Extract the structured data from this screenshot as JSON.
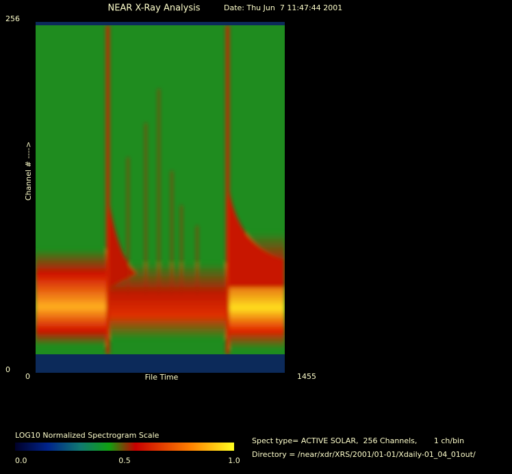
{
  "chart_data": {
    "type": "spectrogram",
    "title": "NEAR X-Ray Analysis",
    "date": "Date: Thu Jun  7 11:47:44 2001",
    "x_label": "File Time",
    "y_label": "Channel # ---->",
    "xlim": [
      0,
      1455
    ],
    "xticks": [
      0,
      1455
    ],
    "ylim": [
      0,
      256
    ],
    "yticks": [
      0,
      256
    ],
    "colorbar": {
      "label": "LOG10 Normalized Spectrogram Scale",
      "lim": [
        0,
        1
      ],
      "ticks": [
        {
          "value": 0,
          "label": "0.0"
        },
        0.5,
        {
          "value": 1,
          "label": "1.0"
        }
      ]
    },
    "info": [
      "Spect type= ACTIVE SOLAR,  256 Channels,       1 ch/bin",
      "Directory = /near/xdr/XRS/2001/01-01/Xdaily-01_04_01out/"
    ]
  }
}
